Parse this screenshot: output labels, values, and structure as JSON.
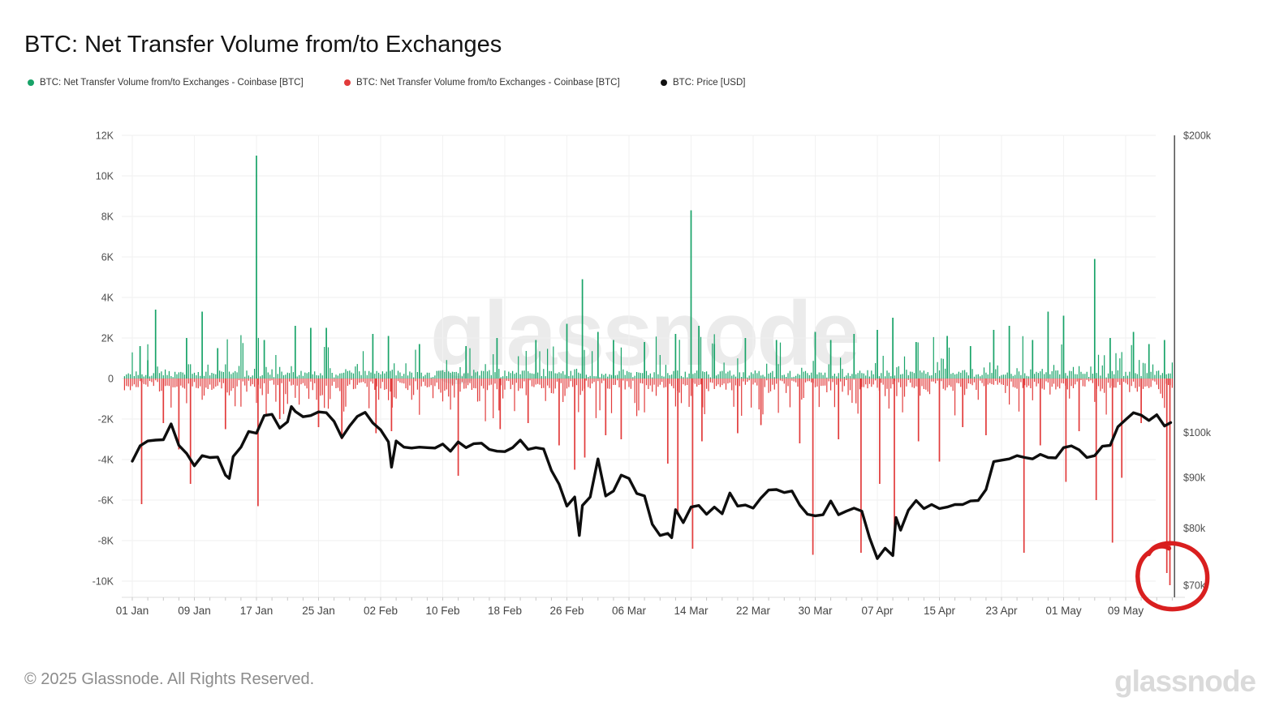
{
  "header": {
    "title": "BTC: Net Transfer Volume from/to Exchanges"
  },
  "legend": [
    {
      "label": "BTC: Net Transfer Volume from/to Exchanges - Coinbase [BTC]",
      "color": "#18a368"
    },
    {
      "label": "BTC: Net Transfer Volume from/to Exchanges - Coinbase [BTC]",
      "color": "#e23b3b"
    },
    {
      "label": "BTC: Price [USD]",
      "color": "#111111"
    }
  ],
  "watermark": "glassnode",
  "footer": {
    "copyright": "© 2025 Glassnode. All Rights Reserved.",
    "logo": "glassnode"
  },
  "chart_data": {
    "type": "combo",
    "title": "BTC: Net Transfer Volume from/to Exchanges",
    "legend_position": "top",
    "grid": true,
    "watermark": "glassnode",
    "bar_series": [
      {
        "name": "BTC: Net Transfer Volume from/to Exchanges - Coinbase [BTC]",
        "direction": "positive-inflow",
        "color": "#18a368"
      },
      {
        "name": "BTC: Net Transfer Volume from/to Exchanges - Coinbase [BTC]",
        "direction": "negative-outflow",
        "color": "#e23b3b"
      }
    ],
    "left_axis": {
      "unit": "BTC",
      "ylim": [
        -10000,
        12000
      ],
      "ticks": [
        {
          "label": "12K",
          "v": 12
        },
        {
          "label": "10K",
          "v": 10
        },
        {
          "label": "8K",
          "v": 8
        },
        {
          "label": "6K",
          "v": 6
        },
        {
          "label": "4K",
          "v": 4
        },
        {
          "label": "2K",
          "v": 2
        },
        {
          "label": "0",
          "v": 0
        },
        {
          "label": "-2K",
          "v": -2
        },
        {
          "label": "-4K",
          "v": -4
        },
        {
          "label": "-6K",
          "v": -6
        },
        {
          "label": "-8K",
          "v": -8
        },
        {
          "label": "-10K",
          "v": -10
        }
      ]
    },
    "right_axis": {
      "unit": "USD",
      "scale": "log",
      "ticks": [
        {
          "label": "$200k",
          "p": 200
        },
        {
          "label": "$100k",
          "p": 100
        },
        {
          "label": "$90k",
          "p": 90
        },
        {
          "label": "$80k",
          "p": 80
        },
        {
          "label": "$70k",
          "p": 70
        }
      ]
    },
    "x_axis": {
      "minor_tick_days": 2,
      "ticks": [
        {
          "label": "01 Jan",
          "d": 0
        },
        {
          "label": "09 Jan",
          "d": 8
        },
        {
          "label": "17 Jan",
          "d": 16
        },
        {
          "label": "25 Jan",
          "d": 24
        },
        {
          "label": "02 Feb",
          "d": 32
        },
        {
          "label": "10 Feb",
          "d": 40
        },
        {
          "label": "18 Feb",
          "d": 48
        },
        {
          "label": "26 Feb",
          "d": 56
        },
        {
          "label": "06 Mar",
          "d": 64
        },
        {
          "label": "14 Mar",
          "d": 72
        },
        {
          "label": "22 Mar",
          "d": 80
        },
        {
          "label": "30 Mar",
          "d": 88
        },
        {
          "label": "07 Apr",
          "d": 96
        },
        {
          "label": "15 Apr",
          "d": 104
        },
        {
          "label": "23 Apr",
          "d": 112
        },
        {
          "label": "01 May",
          "d": 120
        },
        {
          "label": "09 May",
          "d": 128
        }
      ]
    },
    "price_series": {
      "name": "BTC: Price [USD]",
      "color": "#0e0e0e",
      "unit": "thousand USD",
      "points": [
        [
          0,
          93.5
        ],
        [
          1,
          96.9
        ],
        [
          2,
          98.0
        ],
        [
          3,
          98.2
        ],
        [
          4,
          98.3
        ],
        [
          5,
          102.0
        ],
        [
          6,
          97.0
        ],
        [
          7,
          95.2
        ],
        [
          8,
          92.5
        ],
        [
          9,
          94.7
        ],
        [
          10,
          94.3
        ],
        [
          11,
          94.4
        ],
        [
          12,
          90.5
        ],
        [
          12.5,
          89.8
        ],
        [
          13,
          94.5
        ],
        [
          14,
          96.6
        ],
        [
          15,
          100.2
        ],
        [
          16,
          99.8
        ],
        [
          17,
          104.0
        ],
        [
          18,
          104.3
        ],
        [
          19,
          101.0
        ],
        [
          20,
          102.5
        ],
        [
          20.5,
          106.2
        ],
        [
          21,
          105.0
        ],
        [
          22,
          103.7
        ],
        [
          23,
          104.0
        ],
        [
          24,
          104.9
        ],
        [
          25,
          104.7
        ],
        [
          26,
          102.6
        ],
        [
          27,
          98.8
        ],
        [
          28,
          101.5
        ],
        [
          29,
          103.8
        ],
        [
          30,
          104.8
        ],
        [
          31,
          102.2
        ],
        [
          32,
          100.6
        ],
        [
          33,
          97.8
        ],
        [
          33.4,
          92.2
        ],
        [
          34,
          98.0
        ],
        [
          35,
          96.6
        ],
        [
          36,
          96.4
        ],
        [
          37,
          96.6
        ],
        [
          38,
          96.5
        ],
        [
          39,
          96.4
        ],
        [
          40,
          97.3
        ],
        [
          41,
          95.7
        ],
        [
          42,
          97.8
        ],
        [
          43,
          96.5
        ],
        [
          44,
          97.4
        ],
        [
          45,
          97.5
        ],
        [
          46,
          96.1
        ],
        [
          47,
          95.7
        ],
        [
          48,
          95.6
        ],
        [
          49,
          96.5
        ],
        [
          50,
          98.2
        ],
        [
          51,
          96.1
        ],
        [
          52,
          96.5
        ],
        [
          53,
          96.2
        ],
        [
          54,
          91.5
        ],
        [
          55,
          88.6
        ],
        [
          56,
          84.2
        ],
        [
          57,
          86.0
        ],
        [
          57.6,
          78.6
        ],
        [
          58,
          84.3
        ],
        [
          59,
          86.0
        ],
        [
          60,
          94.0
        ],
        [
          61,
          86.2
        ],
        [
          62,
          87.2
        ],
        [
          63,
          90.5
        ],
        [
          64,
          89.8
        ],
        [
          65,
          86.7
        ],
        [
          66,
          86.2
        ],
        [
          67,
          80.7
        ],
        [
          68,
          78.6
        ],
        [
          69,
          79.0
        ],
        [
          69.5,
          78.2
        ],
        [
          70,
          83.5
        ],
        [
          71,
          81.0
        ],
        [
          72,
          84.0
        ],
        [
          73,
          84.3
        ],
        [
          74,
          82.6
        ],
        [
          75,
          84.0
        ],
        [
          76,
          82.7
        ],
        [
          77,
          86.8
        ],
        [
          78,
          84.2
        ],
        [
          79,
          84.4
        ],
        [
          80,
          83.8
        ],
        [
          81,
          85.8
        ],
        [
          82,
          87.4
        ],
        [
          83,
          87.5
        ],
        [
          84,
          86.9
        ],
        [
          85,
          87.2
        ],
        [
          86,
          84.4
        ],
        [
          87,
          82.6
        ],
        [
          88,
          82.3
        ],
        [
          89,
          82.5
        ],
        [
          90,
          85.2
        ],
        [
          91,
          82.5
        ],
        [
          92,
          83.2
        ],
        [
          93,
          83.8
        ],
        [
          94,
          83.2
        ],
        [
          95,
          78.2
        ],
        [
          96,
          74.5
        ],
        [
          97,
          76.3
        ],
        [
          98,
          75.0
        ],
        [
          98.4,
          82.0
        ],
        [
          99,
          79.6
        ],
        [
          100,
          83.4
        ],
        [
          101,
          85.3
        ],
        [
          102,
          83.7
        ],
        [
          103,
          84.5
        ],
        [
          104,
          83.7
        ],
        [
          105,
          84.0
        ],
        [
          106,
          84.5
        ],
        [
          107,
          84.5
        ],
        [
          108,
          85.2
        ],
        [
          109,
          85.3
        ],
        [
          110,
          87.5
        ],
        [
          111,
          93.4
        ],
        [
          112,
          93.7
        ],
        [
          113,
          94.0
        ],
        [
          114,
          94.7
        ],
        [
          115,
          94.3
        ],
        [
          116,
          94.0
        ],
        [
          117,
          95.0
        ],
        [
          118,
          94.3
        ],
        [
          119,
          94.2
        ],
        [
          120,
          96.5
        ],
        [
          121,
          96.9
        ],
        [
          122,
          96.0
        ],
        [
          123,
          94.3
        ],
        [
          124,
          94.7
        ],
        [
          125,
          96.8
        ],
        [
          126,
          97.0
        ],
        [
          127,
          101.3
        ],
        [
          128,
          103.0
        ],
        [
          129,
          104.7
        ],
        [
          130,
          104.1
        ],
        [
          131,
          102.8
        ],
        [
          132,
          104.2
        ],
        [
          133,
          101.5
        ],
        [
          133.8,
          102.3
        ]
      ]
    },
    "volume_spikes_kbtc": [
      [
        1,
        1.6
      ],
      [
        1.2,
        -6.2
      ],
      [
        2,
        0.9
      ],
      [
        3,
        3.4
      ],
      [
        4,
        -2.2
      ],
      [
        6,
        -3.5
      ],
      [
        7,
        2.0
      ],
      [
        7.5,
        -5.2
      ],
      [
        9,
        3.3
      ],
      [
        11,
        1.5
      ],
      [
        12,
        -2.5
      ],
      [
        16,
        11.0
      ],
      [
        16.2,
        -6.3
      ],
      [
        17,
        1.9
      ],
      [
        19,
        -2.0
      ],
      [
        21,
        2.6
      ],
      [
        23,
        2.5
      ],
      [
        24,
        -2.4
      ],
      [
        25,
        2.5
      ],
      [
        27,
        -3.0
      ],
      [
        31,
        2.2
      ],
      [
        31.4,
        -2.7
      ],
      [
        33,
        2.1
      ],
      [
        33.4,
        -2.6
      ],
      [
        37,
        1.7
      ],
      [
        42,
        -4.8
      ],
      [
        43,
        1.6
      ],
      [
        47,
        2.0
      ],
      [
        47.4,
        -2.5
      ],
      [
        51,
        -2.2
      ],
      [
        52,
        1.9
      ],
      [
        55,
        -3.3
      ],
      [
        56,
        2.7
      ],
      [
        57,
        -4.5
      ],
      [
        58,
        4.9
      ],
      [
        58.3,
        -3.9
      ],
      [
        60,
        2.3
      ],
      [
        61,
        -2.8
      ],
      [
        62,
        1.9
      ],
      [
        63,
        -3.0
      ],
      [
        66,
        1.8
      ],
      [
        69,
        -4.2
      ],
      [
        70,
        2.2
      ],
      [
        70.3,
        -6.6
      ],
      [
        72,
        8.3
      ],
      [
        72.2,
        -8.4
      ],
      [
        73,
        2.6
      ],
      [
        73.4,
        -3.1
      ],
      [
        75,
        1.7
      ],
      [
        78,
        -2.7
      ],
      [
        79,
        2.0
      ],
      [
        81,
        -2.3
      ],
      [
        83,
        1.9
      ],
      [
        86,
        -3.2
      ],
      [
        87.7,
        -8.7
      ],
      [
        88,
        2.3
      ],
      [
        90,
        1.9
      ],
      [
        91,
        -3.0
      ],
      [
        93,
        2.2
      ],
      [
        93.9,
        -8.6
      ],
      [
        96,
        2.4
      ],
      [
        96.3,
        -5.2
      ],
      [
        98,
        3.0
      ],
      [
        98.2,
        -7.6
      ],
      [
        101,
        1.8
      ],
      [
        101.3,
        -3.1
      ],
      [
        104,
        -4.1
      ],
      [
        105,
        2.1
      ],
      [
        107,
        -2.4
      ],
      [
        108,
        1.6
      ],
      [
        110,
        -2.8
      ],
      [
        111,
        2.4
      ],
      [
        113,
        2.6
      ],
      [
        114.9,
        -8.6
      ],
      [
        116,
        1.9
      ],
      [
        117,
        -3.3
      ],
      [
        118,
        3.3
      ],
      [
        120,
        3.1
      ],
      [
        120.3,
        -5.1
      ],
      [
        122,
        -2.6
      ],
      [
        124,
        5.9
      ],
      [
        124.2,
        -6.0
      ],
      [
        126,
        2.0
      ],
      [
        126.3,
        -8.1
      ],
      [
        127.5,
        -4.9
      ],
      [
        129,
        2.3
      ],
      [
        130,
        -2.2
      ],
      [
        131,
        1.7
      ],
      [
        133,
        1.9
      ],
      [
        133.3,
        -9.6
      ],
      [
        133.7,
        -10.2
      ]
    ],
    "micro_bar_texture": {
      "note": "dense sub-daily bars too small to read exactly; regenerated deterministically",
      "seed": 1337,
      "bars_per_day": 4,
      "typical_green_k": [
        0.05,
        2.0
      ],
      "typical_red_k": [
        -2.0,
        -0.06
      ]
    },
    "annotation": {
      "shape": "hand-drawn-circle",
      "color": "#d91f1f",
      "center_day": 133.9,
      "center_value_k": -9.7,
      "meaning": "circles the final large negative (outflow) spike near -10K",
      "crosshair_day": 134.3
    }
  }
}
